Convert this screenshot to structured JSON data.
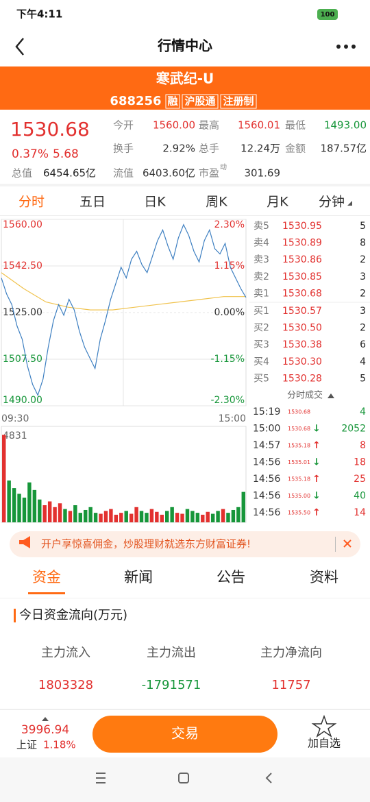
{
  "status_bar": {
    "time": "下午4:11",
    "battery": "100"
  },
  "nav": {
    "title": "行情中心"
  },
  "stock": {
    "name": "寒武纪-U",
    "code": "688256",
    "tags": [
      "融",
      "沪股通",
      "注册制"
    ]
  },
  "quote": {
    "price": "1530.68",
    "change_pct": "0.37%",
    "change": "5.68",
    "fields": [
      {
        "label": "今开",
        "value": "1560.00",
        "color": "red"
      },
      {
        "label": "最高",
        "value": "1560.01",
        "color": "red"
      },
      {
        "label": "最低",
        "value": "1493.00",
        "color": "green"
      },
      {
        "label": "换手",
        "value": "2.92%"
      },
      {
        "label": "总手",
        "value": "12.24万"
      },
      {
        "label": "金额",
        "value": "187.57亿"
      },
      {
        "label": "流值",
        "value": "6403.60亿"
      },
      {
        "label": "市盈",
        "label_sup": "动",
        "value": "301.69"
      }
    ],
    "total_label": "总值",
    "total_value": "6454.65亿"
  },
  "period_tabs": [
    "分时",
    "五日",
    "日K",
    "周K",
    "月K",
    "分钟"
  ],
  "intraday": {
    "yticks": [
      {
        "value": 1560,
        "label": "1560.00"
      },
      {
        "value": 1542.5,
        "label": "1542.50"
      },
      {
        "value": 1525,
        "label": "1525.00"
      },
      {
        "value": 1507.5,
        "label": "1507.50"
      },
      {
        "value": 1490,
        "label": "1490.00"
      }
    ],
    "pct_ticks": [
      "2.30%",
      "1.15%",
      "0.00%",
      "-1.15%",
      "-2.30%"
    ],
    "ylim": [
      1490,
      1560
    ],
    "time_start": "09:30",
    "time_end": "15:00",
    "volume_max": 4831,
    "price": [
      1538,
      1532,
      1528,
      1520,
      1515,
      1505,
      1498,
      1494,
      1500,
      1512,
      1522,
      1528,
      1524,
      1530,
      1526,
      1518,
      1512,
      1508,
      1504,
      1515,
      1522,
      1530,
      1536,
      1542,
      1538,
      1545,
      1548,
      1543,
      1540,
      1546,
      1552,
      1556,
      1550,
      1545,
      1553,
      1558,
      1554,
      1548,
      1544,
      1552,
      1556,
      1549,
      1547,
      1551,
      1542,
      1538,
      1534,
      1530.68
    ],
    "avg": [
      1540,
      1534,
      1529,
      1527,
      1526,
      1526,
      1527,
      1528,
      1529,
      1530,
      1531,
      1531
    ],
    "volume": [
      4600,
      2200,
      1800,
      1500,
      1300,
      2100,
      1700,
      1200,
      900,
      1100,
      800,
      1000,
      700,
      600,
      900,
      500,
      650,
      800,
      500,
      450,
      600,
      700,
      400,
      500,
      600,
      450,
      800,
      600,
      500,
      700,
      550,
      400,
      600,
      800,
      500,
      450,
      700,
      600,
      500,
      400,
      550,
      450,
      600,
      700,
      500,
      650,
      800,
      1600
    ]
  },
  "order_book": {
    "sell": [
      [
        "卖5",
        "1530.95",
        "5"
      ],
      [
        "卖4",
        "1530.89",
        "8"
      ],
      [
        "卖3",
        "1530.86",
        "2"
      ],
      [
        "卖2",
        "1530.85",
        "3"
      ],
      [
        "卖1",
        "1530.68",
        "2"
      ]
    ],
    "buy": [
      [
        "买1",
        "1530.57",
        "3"
      ],
      [
        "买2",
        "1530.50",
        "2"
      ],
      [
        "买3",
        "1530.38",
        "6"
      ],
      [
        "买4",
        "1530.30",
        "4"
      ],
      [
        "买5",
        "1530.28",
        "5"
      ]
    ]
  },
  "trades": {
    "title": "分时成交",
    "rows": [
      {
        "time": "15:19",
        "price": "1530.68",
        "volume": "4",
        "color": "green"
      },
      {
        "time": "15:00",
        "price": "1530.68",
        "dir": "↓",
        "volume": "2052",
        "color": "green"
      },
      {
        "time": "14:57",
        "price": "1535.18",
        "dir": "↑",
        "volume": "8",
        "color": "red"
      },
      {
        "time": "14:56",
        "price": "1535.01",
        "dir": "↓",
        "volume": "18",
        "color": "red"
      },
      {
        "time": "14:56",
        "price": "1535.18",
        "dir": "↑",
        "volume": "25",
        "color": "red"
      },
      {
        "time": "14:56",
        "price": "1535.00",
        "dir": "↓",
        "volume": "40",
        "color": "green"
      },
      {
        "time": "14:56",
        "price": "1535.50",
        "dir": "↑",
        "volume": "14",
        "color": "red"
      }
    ]
  },
  "ad": {
    "text": "开户享惊喜佣金，炒股理财就选东方财富证券!"
  },
  "info_tabs": [
    "资金",
    "新闻",
    "公告",
    "资料"
  ],
  "funds": {
    "title": "今日资金流向(万元)",
    "columns": [
      {
        "label": "主力流入",
        "value": "1803328",
        "color": "red"
      },
      {
        "label": "主力流出",
        "value": "-1791571",
        "color": "green"
      },
      {
        "label": "主力净流向",
        "value": "11757",
        "color": "red"
      }
    ]
  },
  "bottom": {
    "index_value": "3996.94",
    "index_name": "上证",
    "index_pct": "1.18%",
    "trade_button": "交易",
    "favorite": "加自选"
  }
}
